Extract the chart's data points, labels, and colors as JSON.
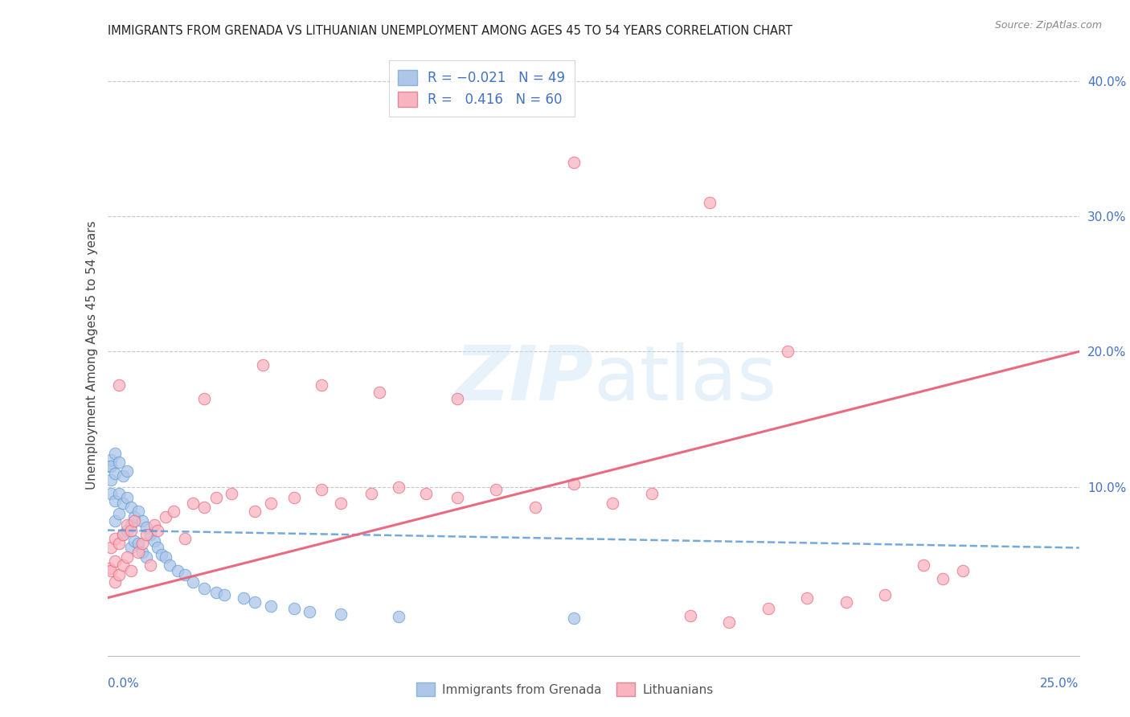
{
  "title": "IMMIGRANTS FROM GRENADA VS LITHUANIAN UNEMPLOYMENT AMONG AGES 45 TO 54 YEARS CORRELATION CHART",
  "source": "Source: ZipAtlas.com",
  "ylabel": "Unemployment Among Ages 45 to 54 years",
  "color_blue": "#aec6e8",
  "color_pink": "#f9b4c0",
  "line_blue": "#5b9bd5",
  "line_pink": "#e8627a",
  "xlim": [
    0.0,
    0.25
  ],
  "ylim": [
    -0.025,
    0.42
  ],
  "grenada_x": [
    0.0005,
    0.001,
    0.001,
    0.001,
    0.001,
    0.002,
    0.002,
    0.002,
    0.002,
    0.003,
    0.003,
    0.003,
    0.004,
    0.004,
    0.004,
    0.005,
    0.005,
    0.005,
    0.006,
    0.006,
    0.006,
    0.007,
    0.007,
    0.008,
    0.008,
    0.009,
    0.009,
    0.01,
    0.01,
    0.011,
    0.012,
    0.013,
    0.014,
    0.015,
    0.016,
    0.018,
    0.02,
    0.022,
    0.025,
    0.028,
    0.03,
    0.035,
    0.038,
    0.042,
    0.048,
    0.052,
    0.06,
    0.075,
    0.12
  ],
  "grenada_y": [
    0.115,
    0.12,
    0.115,
    0.105,
    0.095,
    0.125,
    0.11,
    0.09,
    0.075,
    0.118,
    0.095,
    0.08,
    0.108,
    0.088,
    0.065,
    0.112,
    0.092,
    0.068,
    0.085,
    0.072,
    0.055,
    0.078,
    0.06,
    0.082,
    0.058,
    0.075,
    0.052,
    0.07,
    0.048,
    0.065,
    0.06,
    0.055,
    0.05,
    0.048,
    0.042,
    0.038,
    0.035,
    0.03,
    0.025,
    0.022,
    0.02,
    0.018,
    0.015,
    0.012,
    0.01,
    0.008,
    0.006,
    0.004,
    0.003
  ],
  "lithuanian_x": [
    0.0005,
    0.001,
    0.001,
    0.002,
    0.002,
    0.002,
    0.003,
    0.003,
    0.004,
    0.004,
    0.005,
    0.005,
    0.006,
    0.006,
    0.007,
    0.008,
    0.009,
    0.01,
    0.011,
    0.012,
    0.013,
    0.015,
    0.017,
    0.02,
    0.022,
    0.025,
    0.028,
    0.032,
    0.038,
    0.042,
    0.048,
    0.055,
    0.06,
    0.068,
    0.075,
    0.082,
    0.09,
    0.1,
    0.11,
    0.12,
    0.13,
    0.14,
    0.15,
    0.16,
    0.17,
    0.18,
    0.19,
    0.2,
    0.21,
    0.22,
    0.003,
    0.025,
    0.04,
    0.055,
    0.07,
    0.09,
    0.12,
    0.155,
    0.175,
    0.215
  ],
  "lithuanian_y": [
    0.04,
    0.055,
    0.038,
    0.062,
    0.045,
    0.03,
    0.058,
    0.035,
    0.065,
    0.042,
    0.072,
    0.048,
    0.068,
    0.038,
    0.075,
    0.052,
    0.058,
    0.065,
    0.042,
    0.072,
    0.068,
    0.078,
    0.082,
    0.062,
    0.088,
    0.085,
    0.092,
    0.095,
    0.082,
    0.088,
    0.092,
    0.098,
    0.088,
    0.095,
    0.1,
    0.095,
    0.092,
    0.098,
    0.085,
    0.102,
    0.088,
    0.095,
    0.005,
    0.0,
    0.01,
    0.018,
    0.015,
    0.02,
    0.042,
    0.038,
    0.175,
    0.165,
    0.19,
    0.175,
    0.17,
    0.165,
    0.34,
    0.31,
    0.2,
    0.032
  ],
  "blue_trend_x": [
    0.0,
    0.25
  ],
  "blue_trend_y": [
    0.068,
    0.055
  ],
  "pink_trend_x": [
    0.0,
    0.25
  ],
  "pink_trend_y": [
    0.018,
    0.2
  ]
}
